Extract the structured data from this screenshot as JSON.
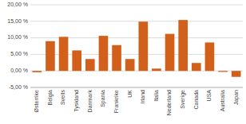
{
  "chart_data": {
    "type": "bar",
    "categories": [
      "Østerrike",
      "Belgia",
      "Sveits",
      "Tyskland",
      "Danmark",
      "Spania",
      "Frankrike",
      "UK",
      "Irland",
      "Italia",
      "Nederland",
      "Sverige",
      "Canada",
      "USA",
      "Australia",
      "Japan"
    ],
    "values": [
      -0.4,
      9.0,
      10.3,
      6.2,
      3.6,
      10.6,
      7.8,
      3.6,
      14.9,
      0.7,
      11.2,
      15.4,
      2.4,
      8.6,
      -0.3,
      -1.8
    ],
    "color": "#D2601A",
    "ylim": [
      -5,
      20
    ],
    "yticks": [
      {
        "value": -5,
        "label": "-5,00 %"
      },
      {
        "value": 0,
        "label": "0,00 %"
      },
      {
        "value": 5,
        "label": "5,00 %"
      },
      {
        "value": 10,
        "label": "10,00 %"
      },
      {
        "value": 15,
        "label": "15,00 %"
      },
      {
        "value": 20,
        "label": "20,00 %"
      }
    ],
    "grid": true
  }
}
